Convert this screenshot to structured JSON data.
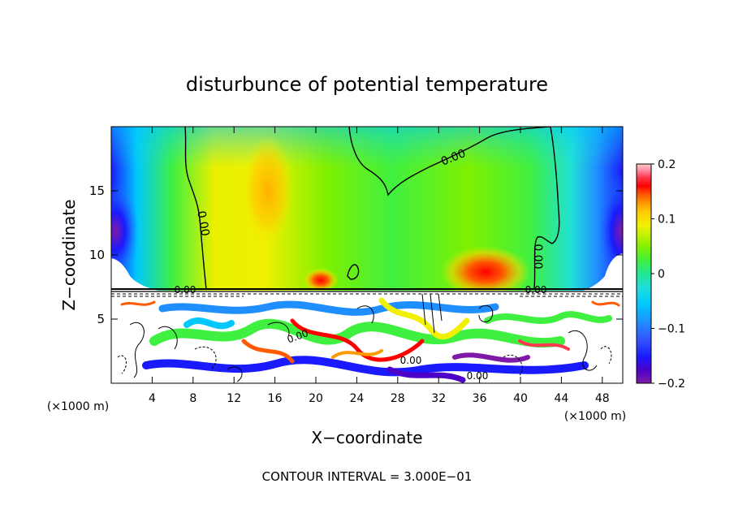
{
  "chart_data": {
    "type": "heatmap",
    "title": "disturbunce of potential temperature",
    "xlabel": "X−coordinate",
    "ylabel": "Z−coordinate",
    "x_unit_left": "(×1000 m)",
    "x_unit_right": "(×1000 m)",
    "xlim": [
      0,
      50
    ],
    "ylim": [
      0,
      20
    ],
    "xticks": [
      4,
      8,
      12,
      16,
      20,
      24,
      28,
      32,
      36,
      40,
      44,
      48
    ],
    "xtick_labels": [
      "4",
      "8",
      "12",
      "16",
      "20",
      "24",
      "28",
      "32",
      "36",
      "40",
      "44",
      "48"
    ],
    "yticks": [
      5,
      10,
      15
    ],
    "ytick_labels": [
      "5",
      "10",
      "15"
    ],
    "colorbar": {
      "min": -0.2,
      "max": 0.2,
      "ticks": [
        0.2,
        0.1,
        0,
        -0.1,
        -0.2
      ],
      "tick_labels": [
        "0.2",
        "0.1",
        "0",
        "−0.1",
        "−0.2"
      ],
      "colors": [
        "#7f1aa6",
        "#4d00c8",
        "#1a1aff",
        "#3355ff",
        "#1f8fff",
        "#00c8ff",
        "#20e0d8",
        "#20e890",
        "#40f040",
        "#7ff000",
        "#c8f000",
        "#f0f000",
        "#ffcc00",
        "#ff9900",
        "#ff5a00",
        "#ff0000",
        "#ff3a50",
        "#ff8aa0",
        "#ffc8c8"
      ]
    },
    "contour_labels": [
      "0.00",
      "0.00",
      "0.00",
      "0.00",
      "0.00",
      "0.00",
      "0.00",
      "0.00"
    ],
    "footer": "CONTOUR INTERVAL = 3.000E−01"
  }
}
